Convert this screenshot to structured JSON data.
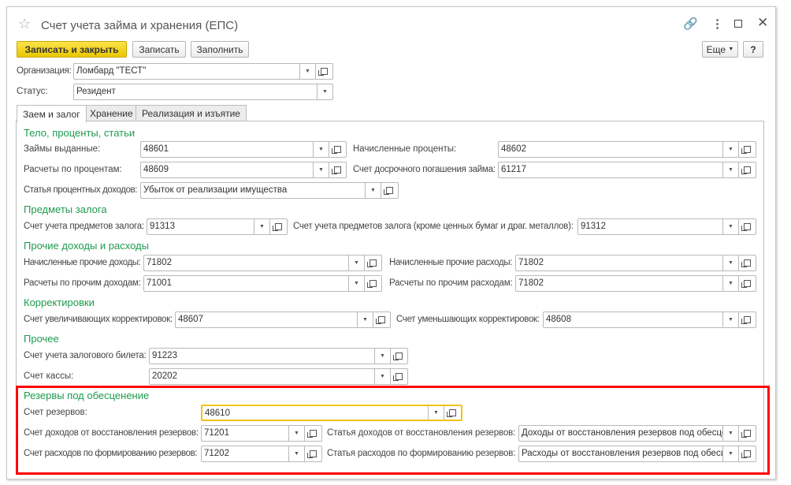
{
  "window": {
    "title": "Счет учета займа и хранения (ЕПС)",
    "more_label": "Еще",
    "help_label": "?"
  },
  "toolbar": {
    "save_close": "Записать и закрыть",
    "save": "Записать",
    "fill": "Заполнить"
  },
  "header": {
    "org_label": "Организация:",
    "org_value": "Ломбард \"ТЕСТ\"",
    "status_label": "Статус:",
    "status_value": "Резидент"
  },
  "tabs": [
    {
      "label": "Заем и залог"
    },
    {
      "label": "Хранение"
    },
    {
      "label": "Реализация и изъятие"
    }
  ],
  "sections": {
    "s1": "Тело, проценты, статьи",
    "s2": "Предметы залога",
    "s3": "Прочие доходы и расходы",
    "s4": "Корректировки",
    "s5": "Прочее",
    "s6": "Резервы под обесценение"
  },
  "fields": {
    "f1": {
      "label": "Займы выданные:",
      "value": "48601"
    },
    "f2": {
      "label": "Начисленные проценты:",
      "value": "48602"
    },
    "f3": {
      "label": "Расчеты по процентам:",
      "value": "48609"
    },
    "f4": {
      "label": "Счет досрочного погашения займа:",
      "value": "61217"
    },
    "f5": {
      "label": "Статья процентных доходов:",
      "value": "Убыток от реализации имущества"
    },
    "f6": {
      "label": "Счет учета предметов залога:",
      "value": "91313"
    },
    "f7": {
      "label": "Счет учета предметов залога (кроме ценных бумаг и драг. металлов):",
      "value": "91312"
    },
    "f8": {
      "label": "Начисленные прочие доходы:",
      "value": "71802"
    },
    "f9": {
      "label": "Начисленные прочие расходы:",
      "value": "71802"
    },
    "f10": {
      "label": "Расчеты по прочим доходам:",
      "value": "71001"
    },
    "f11": {
      "label": "Расчеты по прочим расходам:",
      "value": "71802"
    },
    "f12": {
      "label": "Счет увеличивающих корректировок:",
      "value": "48607"
    },
    "f13": {
      "label": "Счет уменьшающих корректировок:",
      "value": "48608"
    },
    "f14": {
      "label": "Счет учета залогового билета:",
      "value": "91223"
    },
    "f15": {
      "label": "Счет кассы:",
      "value": "20202"
    },
    "f16": {
      "label": "Счет резервов:",
      "value": "48610"
    },
    "f17": {
      "label": "Счет доходов от восстановления резервов:",
      "value": "71201"
    },
    "f18": {
      "label": "Статья доходов от восстановления резервов:",
      "value": "Доходы от восстановления резервов под обесценение"
    },
    "f19": {
      "label": "Счет расходов по формированию резервов:",
      "value": "71202"
    },
    "f20": {
      "label": "Статья расходов по формированию резервов:",
      "value": "Расходы от восстановления резервов под обесценение"
    }
  },
  "colors": {
    "accent": "#f2c21a",
    "section": "#1e9b4e",
    "highlight": "#ff0000"
  }
}
